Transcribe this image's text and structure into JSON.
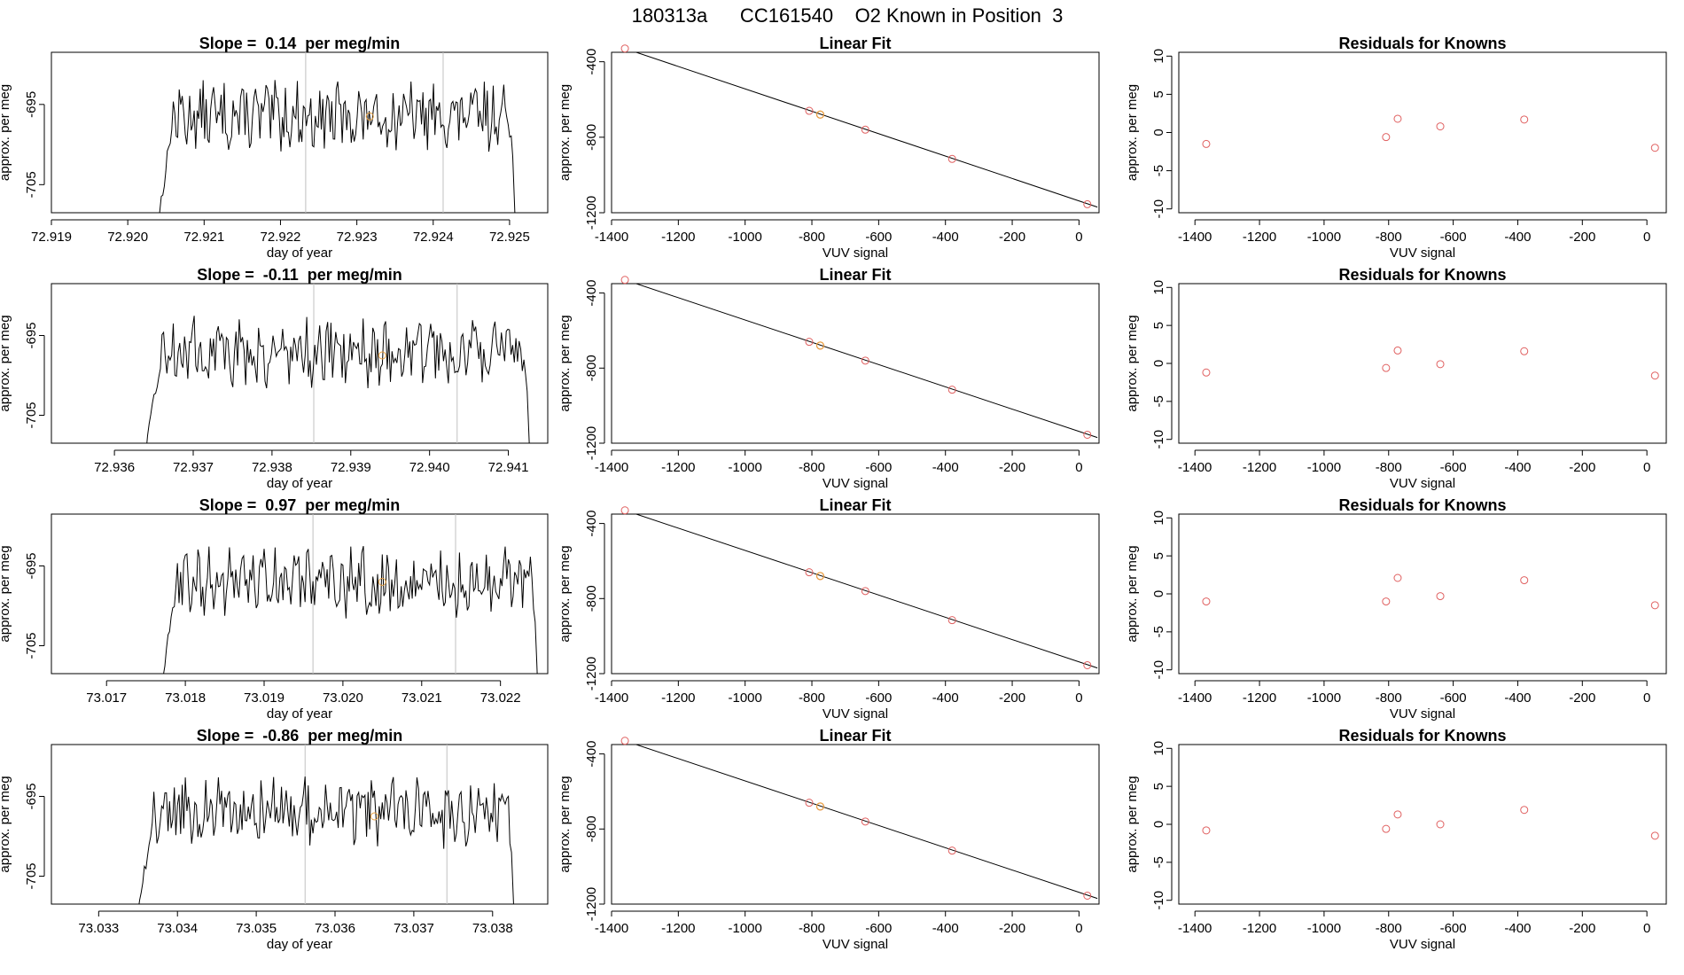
{
  "page_title": "180313a      CC161540    O2 Known in Position  3",
  "colors": {
    "trace": "#000000",
    "knownPoint": "#e06060",
    "currentPoint": "#e8a040",
    "vline": "#c0c0c0",
    "fitLine": "#000000"
  },
  "shared": {
    "timeXlabel": "day of year",
    "timeYlabel": "approx. per meg",
    "timeYticks": [
      -705,
      -695
    ],
    "fitTitle": "Linear Fit",
    "fitXlabel": "VUV signal",
    "fitYlabel": "approx. per meg",
    "fitXticks": [
      -1400,
      -1200,
      -1000,
      -800,
      -600,
      -400,
      -200,
      0
    ],
    "fitYticks": [
      -1200,
      -800,
      -400
    ],
    "resTitle": "Residuals for Knowns",
    "resXlabel": "VUV signal",
    "resYlabel": "approx. per meg",
    "resXticks": [
      -1400,
      -1200,
      -1000,
      -800,
      -600,
      -400,
      -200,
      0
    ],
    "resYticks": [
      -10,
      -5,
      0,
      5,
      10
    ]
  },
  "chart_data": [
    {
      "type": "line",
      "title": "Slope =  0.14  per meg/min",
      "xlabel": "day of year",
      "ylabel": "approx. per meg",
      "xlim": [
        72.919,
        72.9255
      ],
      "ylim": [
        -708.5,
        -688.5
      ],
      "xticks": [
        "72.919",
        "72.920",
        "72.921",
        "72.922",
        "72.923",
        "72.924",
        "72.925"
      ],
      "xtickValues": [
        72.919,
        72.92,
        72.921,
        72.922,
        72.923,
        72.924,
        72.925
      ],
      "start": 72.9204,
      "end": 72.9251,
      "vlines": [
        72.92233,
        72.92413
      ],
      "marker": {
        "x": 72.92317,
        "y": -696.5
      },
      "level": -696.5
    },
    {
      "type": "scatter",
      "title": "Linear Fit",
      "xlabel": "VUV signal",
      "ylabel": "approx. per meg",
      "xlim": [
        -1400,
        60
      ],
      "ylim": [
        -1200,
        -350
      ],
      "points": [
        [
          -1360,
          -330
        ],
        [
          -808,
          -660
        ],
        [
          -775,
          -680
        ],
        [
          -640,
          -760
        ],
        [
          -380,
          -915
        ],
        [
          25,
          -1155
        ]
      ],
      "highlight": [
        -775,
        -680
      ],
      "fit": [
        [
          -1360,
          -330
        ],
        [
          55,
          -1170
        ]
      ]
    },
    {
      "type": "scatter",
      "title": "Residuals for Knowns",
      "xlabel": "VUV signal",
      "ylabel": "approx. per meg",
      "xlim": [
        -1450,
        60
      ],
      "ylim": [
        -10.5,
        10.5
      ],
      "points": [
        [
          -1365,
          -1.5
        ],
        [
          -808,
          -0.6
        ],
        [
          -772,
          1.8
        ],
        [
          -640,
          0.8
        ],
        [
          -380,
          1.7
        ],
        [
          25,
          -2.0
        ]
      ]
    },
    {
      "type": "line",
      "title": "Slope =  -0.11  per meg/min",
      "xlabel": "day of year",
      "ylabel": "approx. per meg",
      "xlim": [
        72.9352,
        72.9415
      ],
      "ylim": [
        -708.5,
        -688.5
      ],
      "xticks": [
        "72.936",
        "72.937",
        "72.938",
        "72.939",
        "72.940",
        "72.941"
      ],
      "xtickValues": [
        72.936,
        72.937,
        72.938,
        72.939,
        72.94,
        72.941
      ],
      "start": 72.9364,
      "end": 72.9413,
      "vlines": [
        72.93853,
        72.94035
      ],
      "marker": {
        "x": 72.9394,
        "y": -697.5
      },
      "level": -697
    },
    {
      "type": "scatter",
      "title": "Linear Fit",
      "xlabel": "VUV signal",
      "ylabel": "approx. per meg",
      "xlim": [
        -1400,
        60
      ],
      "ylim": [
        -1200,
        -350
      ],
      "points": [
        [
          -1360,
          -330
        ],
        [
          -808,
          -660
        ],
        [
          -775,
          -680
        ],
        [
          -640,
          -760
        ],
        [
          -380,
          -915
        ],
        [
          25,
          -1155
        ]
      ],
      "highlight": [
        -775,
        -680
      ],
      "fit": [
        [
          -1360,
          -330
        ],
        [
          55,
          -1170
        ]
      ]
    },
    {
      "type": "scatter",
      "title": "Residuals for Knowns",
      "xlabel": "VUV signal",
      "ylabel": "approx. per meg",
      "xlim": [
        -1450,
        60
      ],
      "ylim": [
        -10.5,
        10.5
      ],
      "points": [
        [
          -1365,
          -1.2
        ],
        [
          -808,
          -0.6
        ],
        [
          -772,
          1.7
        ],
        [
          -640,
          -0.1
        ],
        [
          -380,
          1.6
        ],
        [
          25,
          -1.6
        ]
      ]
    },
    {
      "type": "line",
      "title": "Slope =  0.97  per meg/min",
      "xlabel": "day of year",
      "ylabel": "approx. per meg",
      "xlim": [
        73.0163,
        73.0226
      ],
      "ylim": [
        -708.5,
        -688.5
      ],
      "xticks": [
        "73.017",
        "73.018",
        "73.019",
        "73.020",
        "73.021",
        "73.022"
      ],
      "xtickValues": [
        73.017,
        73.018,
        73.019,
        73.02,
        73.021,
        73.022
      ],
      "start": 73.0177,
      "end": 73.0225,
      "vlines": [
        73.01962,
        73.02143
      ],
      "marker": {
        "x": 73.0205,
        "y": -697
      },
      "level": -697
    },
    {
      "type": "scatter",
      "title": "Linear Fit",
      "xlabel": "VUV signal",
      "ylabel": "approx. per meg",
      "xlim": [
        -1400,
        60
      ],
      "ylim": [
        -1200,
        -350
      ],
      "points": [
        [
          -1360,
          -330
        ],
        [
          -808,
          -660
        ],
        [
          -775,
          -680
        ],
        [
          -640,
          -760
        ],
        [
          -380,
          -915
        ],
        [
          25,
          -1155
        ]
      ],
      "highlight": [
        -775,
        -680
      ],
      "fit": [
        [
          -1360,
          -330
        ],
        [
          55,
          -1170
        ]
      ]
    },
    {
      "type": "scatter",
      "title": "Residuals for Knowns",
      "xlabel": "VUV signal",
      "ylabel": "approx. per meg",
      "xlim": [
        -1450,
        60
      ],
      "ylim": [
        -10.5,
        10.5
      ],
      "points": [
        [
          -1365,
          -1.0
        ],
        [
          -808,
          -1.0
        ],
        [
          -772,
          2.1
        ],
        [
          -640,
          -0.3
        ],
        [
          -380,
          1.8
        ],
        [
          25,
          -1.5
        ]
      ]
    },
    {
      "type": "line",
      "title": "Slope =  -0.86  per meg/min",
      "xlabel": "day of year",
      "ylabel": "approx. per meg",
      "xlim": [
        73.0324,
        73.0387
      ],
      "ylim": [
        -708.5,
        -688.5
      ],
      "xticks": [
        "73.033",
        "73.034",
        "73.035",
        "73.036",
        "73.037",
        "73.038"
      ],
      "xtickValues": [
        73.033,
        73.034,
        73.035,
        73.036,
        73.037,
        73.038
      ],
      "start": 73.0335,
      "end": 73.0383,
      "vlines": [
        73.03562,
        73.03742
      ],
      "marker": {
        "x": 73.0365,
        "y": -697.5
      },
      "level": -697
    },
    {
      "type": "scatter",
      "title": "Linear Fit",
      "xlabel": "VUV signal",
      "ylabel": "approx. per meg",
      "xlim": [
        -1400,
        60
      ],
      "ylim": [
        -1200,
        -350
      ],
      "points": [
        [
          -1360,
          -330
        ],
        [
          -808,
          -660
        ],
        [
          -775,
          -680
        ],
        [
          -640,
          -760
        ],
        [
          -380,
          -915
        ],
        [
          25,
          -1155
        ]
      ],
      "highlight": [
        -775,
        -680
      ],
      "fit": [
        [
          -1360,
          -330
        ],
        [
          55,
          -1170
        ]
      ]
    },
    {
      "type": "scatter",
      "title": "Residuals for Knowns",
      "xlabel": "VUV signal",
      "ylabel": "approx. per meg",
      "xlim": [
        -1450,
        60
      ],
      "ylim": [
        -10.5,
        10.5
      ],
      "points": [
        [
          -1365,
          -0.8
        ],
        [
          -808,
          -0.6
        ],
        [
          -772,
          1.3
        ],
        [
          -640,
          0.0
        ],
        [
          -380,
          1.9
        ],
        [
          25,
          -1.5
        ]
      ]
    }
  ]
}
